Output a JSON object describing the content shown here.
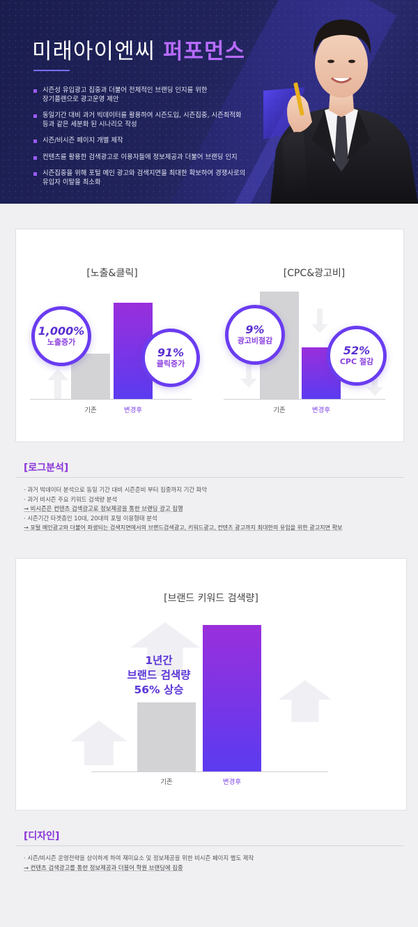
{
  "hero": {
    "title_main": "미래아이엔씨",
    "title_accent": "퍼포먼스",
    "bullets": [
      "시즌성 유입광고 집중과 더불어 전체적인 브랜딩 인지를 위한\n장기플랜으로 광고운영 제안",
      "동일기간 대비 과거 빅데이터를 활용하여 시즌도입, 시즌집중, 시즌최적화\n등과 같은 세분화 된 시나리오 작성",
      "시즌/비시즌 페이지 개별 제작",
      "컨텐츠를 활용한 검색광고로 이용자들에 정보제공과 더불어 브랜딩 인지",
      "시즌집중을 위해 포털 메인 광고와 검색지면을 최대한 확보하여 경쟁사로의\n유입자 이탈을 최소화"
    ]
  },
  "charts": {
    "exposure": {
      "title": "[노출&클릭]",
      "cat_before": "기존",
      "cat_after": "변경후",
      "badge1_value": "1,000%",
      "badge1_label": "노출증가",
      "badge2_value": "91%",
      "badge2_label": "클릭증가"
    },
    "cpc": {
      "title": "[CPC&광고비]",
      "cat_before": "기존",
      "cat_after": "변경후",
      "badge1_value": "9%",
      "badge1_label": "광고비절감",
      "badge2_value": "52%",
      "badge2_label": "CPC 절감"
    },
    "brand": {
      "title": "[브랜드 키워드 검색량]",
      "cat_before": "기존",
      "cat_after": "변경후",
      "line1": "1년간",
      "line2": "브랜드 검색량",
      "line3": "56% 상승"
    }
  },
  "log_analysis": {
    "title": "[로그분석]",
    "items": [
      "· 과거 빅데이터 분석으로 동일 기간 대비 시즌준비 부터 집중까지 기간 파악",
      "· 과거 비시즌 주요 키워드 검색량 분석",
      "→ 비시즌은 컨텐츠 검색광고로 정보제공을 통한 브랜딩 광고 집행",
      "· 시즌기간 타겟층인 10대, 20대의 포털 이용형태 분석",
      "→ 포털 메인광고와 더불어 파생되는 검색지면에서의 브랜드검색광고, 키워드광고, 컨텐츠 광고까지 최대한의 유입을 위한 광고지면 확보"
    ]
  },
  "design": {
    "title": "[디자인]",
    "items": [
      "· 시즌/비시즌 운영전략을 상이하게 하여 재미요소 및 정보제공을 위한 비시즌 페이지 별도 제작",
      "→ 컨텐츠 검색광고를 통한 정보제공과 더불어 학원 브랜딩에 집중"
    ]
  },
  "chart_data": [
    {
      "type": "bar",
      "title": "[노출&클릭]",
      "categories": [
        "기존",
        "변경후"
      ],
      "values": [
        47,
        100
      ],
      "annotations": [
        "1,000% 노출증가",
        "91% 클릭증가"
      ]
    },
    {
      "type": "bar",
      "title": "[CPC&광고비]",
      "categories": [
        "기존",
        "변경후"
      ],
      "values": [
        100,
        48
      ],
      "annotations": [
        "9% 광고비절감",
        "52% CPC 절감"
      ]
    },
    {
      "type": "bar",
      "title": "[브랜드 키워드 검색량]",
      "categories": [
        "기존",
        "변경후"
      ],
      "values": [
        47,
        100
      ],
      "annotations": [
        "1년간 브랜드 검색량 56% 상승"
      ]
    }
  ]
}
